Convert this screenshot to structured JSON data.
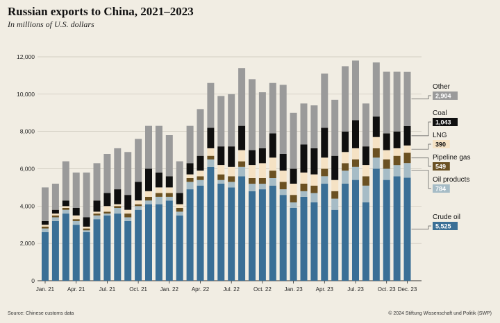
{
  "header": {
    "title": "Russian exports to China, 2021–2023",
    "subtitle": "In millions of U.S. dollars"
  },
  "footer": {
    "source": "Source: Chinese customs data",
    "credit": "© 2024 Stiftung Wissenschaft und Politik (SWP)"
  },
  "colors": {
    "Crude oil": "#3a6f96",
    "Oil products": "#a6bcc6",
    "Pipeline gas": "#6b5122",
    "LNG": "#f5e2c4",
    "Coal": "#0f0f0f",
    "Other": "#9a9a9a",
    "background": "#f1ede3"
  },
  "chart_data": {
    "type": "bar",
    "stacked": true,
    "grid": true,
    "ylim": [
      0,
      12000
    ],
    "y_ticks": [
      "0",
      "2,000",
      "4,000",
      "6,000",
      "8,000",
      "10,000",
      "12,000"
    ],
    "x_tick_labels": [
      "Jan. 21",
      "Apr. 21",
      "Jul. 21",
      "Oct. 21",
      "Jan. 22",
      "Apr. 22",
      "Jul. 22",
      "Oct. 22",
      "Jan. 23",
      "Apr. 23",
      "Jul. 23",
      "Oct. 23",
      "Dec. 23"
    ],
    "x_tick_indices": [
      0,
      3,
      6,
      9,
      12,
      15,
      18,
      21,
      24,
      27,
      30,
      33,
      35
    ],
    "categories": [
      "Jan 2021",
      "Feb 2021",
      "Mar 2021",
      "Apr 2021",
      "May 2021",
      "Jun 2021",
      "Jul 2021",
      "Aug 2021",
      "Sep 2021",
      "Oct 2021",
      "Nov 2021",
      "Dec 2021",
      "Jan 2022",
      "Feb 2022",
      "Mar 2022",
      "Apr 2022",
      "May 2022",
      "Jun 2022",
      "Jul 2022",
      "Aug 2022",
      "Sep 2022",
      "Oct 2022",
      "Nov 2022",
      "Dec 2022",
      "Jan 2023",
      "Feb 2023",
      "Mar 2023",
      "Apr 2023",
      "May 2023",
      "Jun 2023",
      "Jul 2023",
      "Aug 2023",
      "Sep 2023",
      "Oct 2023",
      "Nov 2023",
      "Dec 2023"
    ],
    "series": [
      {
        "name": "Crude oil",
        "values": [
          2600,
          3200,
          3600,
          3000,
          2600,
          3300,
          3500,
          3600,
          3200,
          3800,
          4100,
          4100,
          4300,
          3500,
          4900,
          5100,
          6100,
          5200,
          5000,
          5600,
          4800,
          4900,
          5100,
          4600,
          3900,
          4500,
          4200,
          5200,
          3800,
          5200,
          5400,
          4200,
          6000,
          5400,
          5600,
          5525
        ]
      },
      {
        "name": "Oil products",
        "values": [
          200,
          200,
          200,
          200,
          100,
          200,
          100,
          300,
          200,
          200,
          200,
          400,
          200,
          200,
          400,
          300,
          400,
          200,
          300,
          500,
          400,
          300,
          400,
          300,
          300,
          300,
          500,
          400,
          600,
          700,
          700,
          900,
          600,
          600,
          600,
          784
        ]
      },
      {
        "name": "Pipeline gas",
        "values": [
          100,
          100,
          100,
          100,
          100,
          100,
          100,
          100,
          200,
          100,
          200,
          200,
          200,
          200,
          200,
          200,
          200,
          300,
          300,
          300,
          300,
          300,
          400,
          400,
          400,
          400,
          400,
          400,
          400,
          400,
          400,
          500,
          500,
          500,
          500,
          549
        ]
      },
      {
        "name": "LNG",
        "values": [
          100,
          100,
          100,
          200,
          100,
          100,
          300,
          100,
          200,
          200,
          300,
          300,
          300,
          200,
          200,
          300,
          400,
          500,
          500,
          600,
          700,
          800,
          700,
          600,
          600,
          600,
          600,
          600,
          600,
          600,
          600,
          600,
          600,
          500,
          400,
          390
        ]
      },
      {
        "name": "Coal",
        "values": [
          200,
          200,
          300,
          400,
          500,
          600,
          700,
          800,
          800,
          1000,
          1200,
          800,
          600,
          600,
          600,
          800,
          1100,
          1000,
          1100,
          1300,
          800,
          800,
          1300,
          900,
          800,
          1500,
          1400,
          1600,
          1300,
          1100,
          1500,
          1000,
          1100,
          900,
          900,
          1043
        ]
      },
      {
        "name": "Other",
        "values": [
          1800,
          1400,
          2100,
          1900,
          2400,
          2000,
          2100,
          2200,
          2300,
          2300,
          2300,
          2500,
          2200,
          1700,
          2000,
          2500,
          2400,
          2700,
          2800,
          3100,
          3800,
          3000,
          2700,
          3700,
          3000,
          2200,
          2300,
          2900,
          3000,
          3500,
          3200,
          2300,
          2900,
          3300,
          3200,
          2904
        ]
      }
    ],
    "legend": {
      "placement": "right",
      "entries": [
        {
          "series": "Other",
          "label": "Other",
          "value": "2,904"
        },
        {
          "series": "Coal",
          "label": "Coal",
          "value": "1,043"
        },
        {
          "series": "LNG",
          "label": "LNG",
          "value": "390"
        },
        {
          "series": "Pipeline gas",
          "label": "Pipeline gas",
          "value": "549"
        },
        {
          "series": "Oil products",
          "label": "Oil products",
          "value": "784"
        },
        {
          "series": "Crude oil",
          "label": "Crude oil",
          "value": "5,525"
        }
      ]
    }
  }
}
